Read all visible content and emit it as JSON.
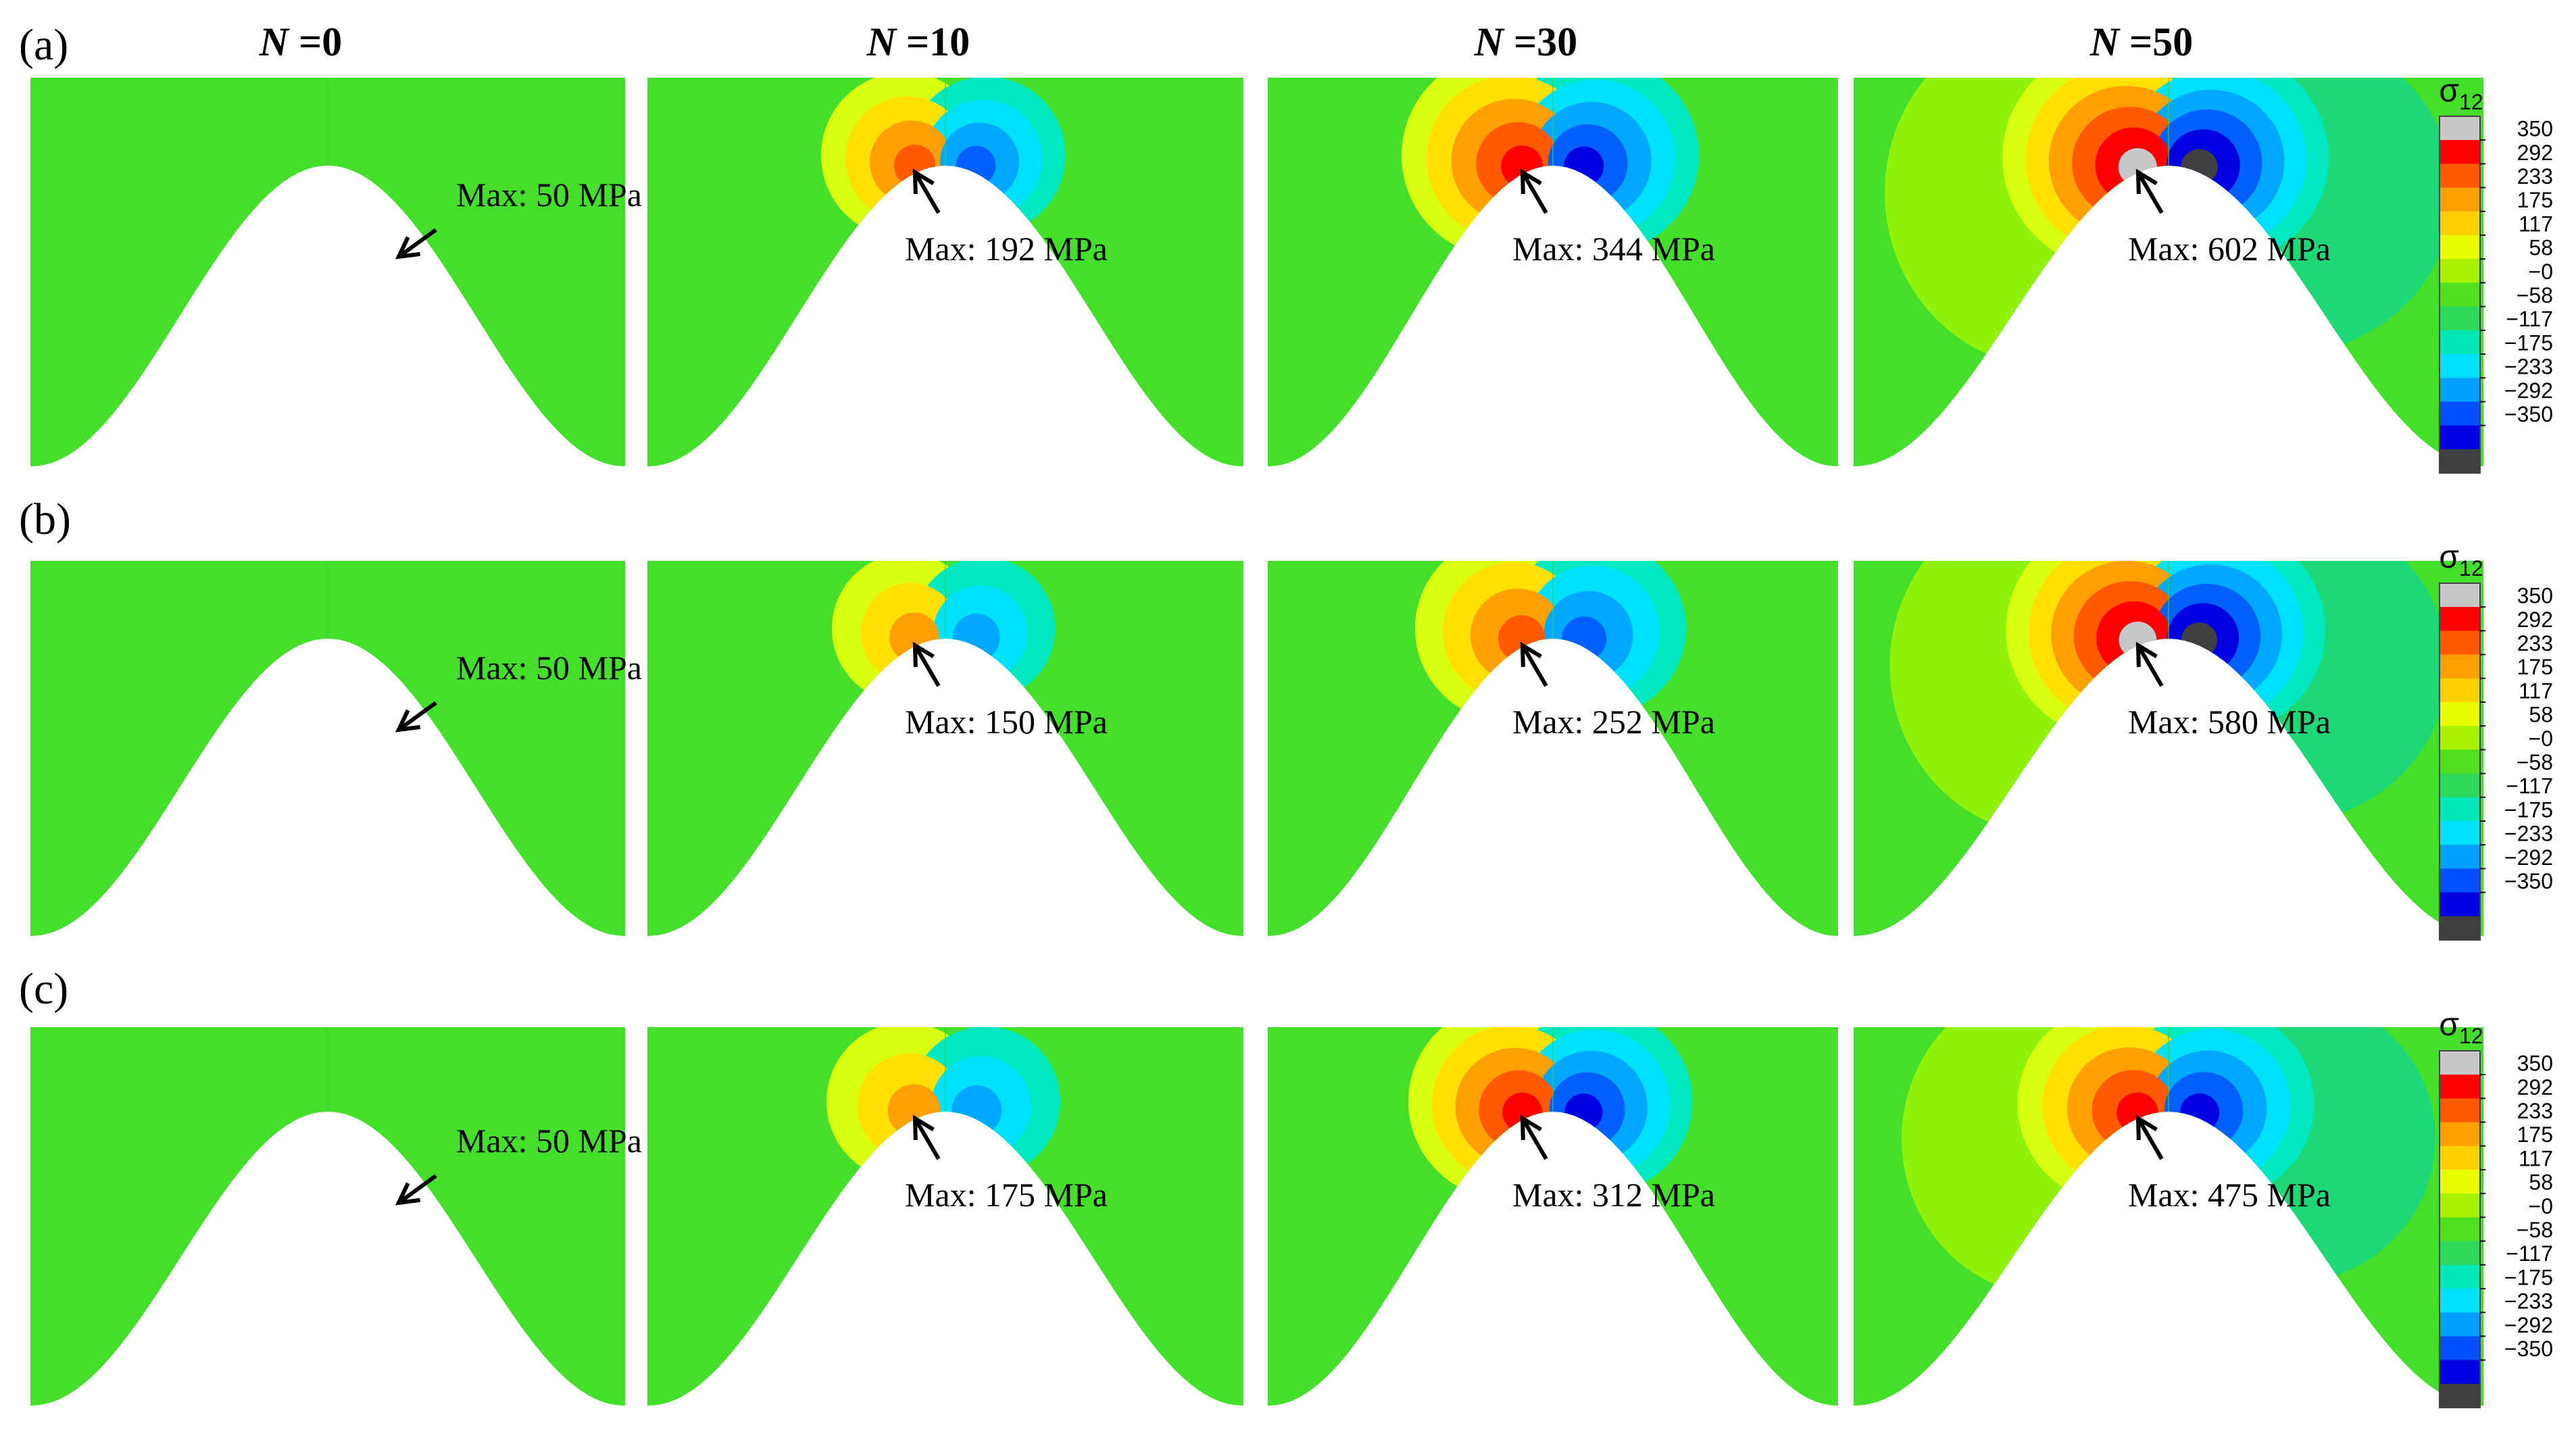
{
  "columns": [
    {
      "var": "N",
      "eq": " =0"
    },
    {
      "var": "N",
      "eq": " =10"
    },
    {
      "var": "N",
      "eq": " =30"
    },
    {
      "var": "N",
      "eq": " =50"
    }
  ],
  "rows": [
    {
      "label": "(a)",
      "max": [
        "Max: 50 MPa",
        "Max: 192 MPa",
        "Max: 344 MPa",
        "Max: 602 MPa"
      ]
    },
    {
      "label": "(b)",
      "max": [
        "Max: 50 MPa",
        "Max: 150 MPa",
        "Max: 252 MPa",
        "Max: 580 MPa"
      ]
    },
    {
      "label": "(c)",
      "max": [
        "Max: 50 MPa",
        "Max: 175 MPa",
        "Max: 312 MPa",
        "Max: 475 MPa"
      ]
    }
  ],
  "colorbar": {
    "title": "σ",
    "subscript": "12",
    "ticks": [
      "350",
      "292",
      "233",
      "175",
      "117",
      "58",
      "−0",
      "−58",
      "−117",
      "−175",
      "−233",
      "−292",
      "−350"
    ],
    "colors": [
      "#c8c8c8",
      "#ff0000",
      "#ff5a00",
      "#ffa000",
      "#ffd000",
      "#e8ff00",
      "#a8f000",
      "#50e020",
      "#2ed85a",
      "#00e8b8",
      "#00e0ff",
      "#00a0ff",
      "#0050ff",
      "#0000e0",
      "#404040"
    ]
  },
  "field_colors": {
    "base": "#44df2a",
    "pos": [
      "#8ff20a",
      "#d8ff10",
      "#ffe000",
      "#ffa000",
      "#ff5a00",
      "#ff0000",
      "#c8c8c8"
    ],
    "neg": [
      "#1ed878",
      "#00e8c0",
      "#00e0ff",
      "#00a8ff",
      "#0060ff",
      "#0000e0",
      "#404040"
    ]
  },
  "intensity": [
    [
      0,
      0.52,
      0.72,
      1.0
    ],
    [
      0,
      0.44,
      0.62,
      0.97
    ],
    [
      0,
      0.48,
      0.67,
      0.9
    ]
  ]
}
